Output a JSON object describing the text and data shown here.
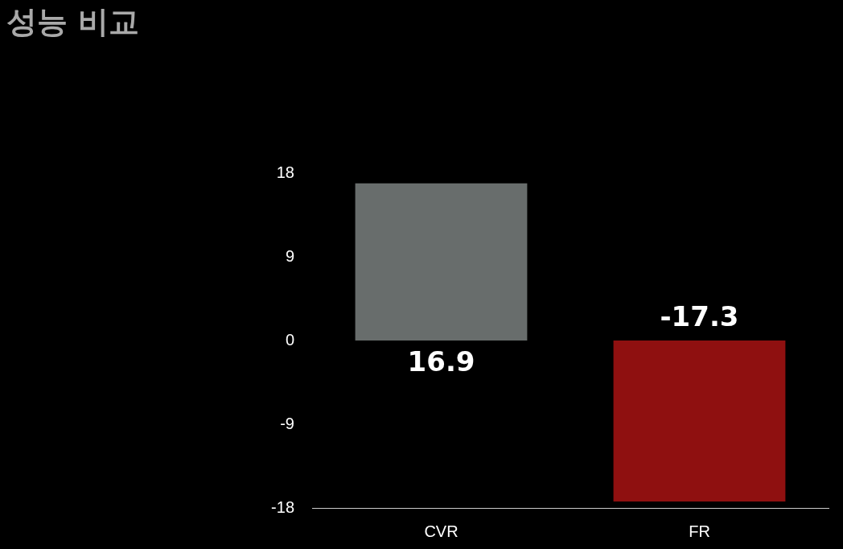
{
  "chart_data": {
    "type": "bar",
    "title": "성능 비교",
    "categories": [
      "CVR",
      "FR"
    ],
    "values": [
      16.9,
      -17.3
    ],
    "colors": [
      "#686d6c",
      "#8f1010"
    ],
    "ylim": [
      -18,
      18
    ],
    "yticks": [
      -18,
      -9,
      0,
      9,
      18
    ],
    "grid": false,
    "legend": false,
    "data_labels": true
  }
}
